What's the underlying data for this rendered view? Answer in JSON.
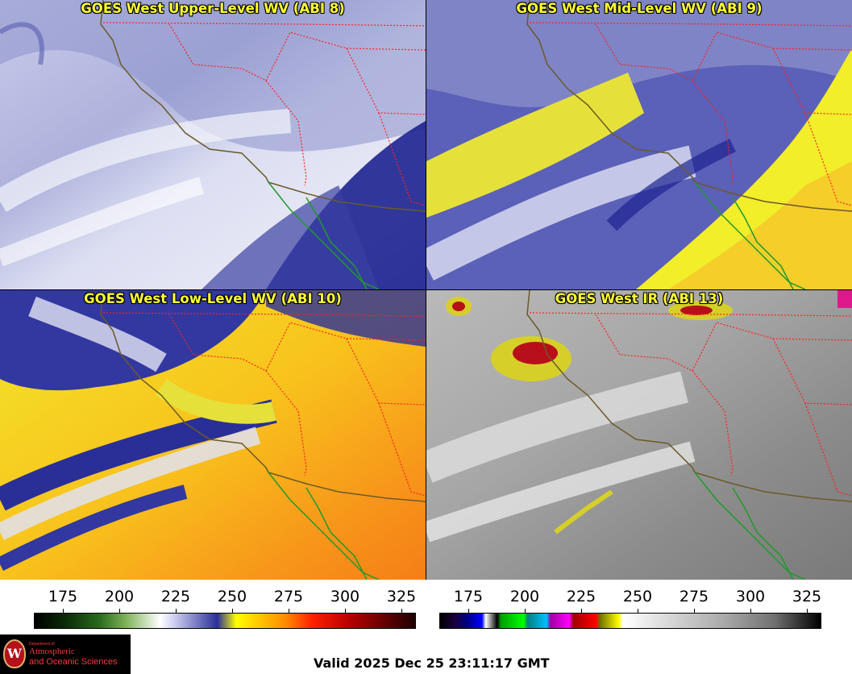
{
  "panels": {
    "upper": {
      "title": "GOES West Upper-Level WV (ABI 8)"
    },
    "mid": {
      "title": "GOES West Mid-Level WV (ABI 9)"
    },
    "low": {
      "title": "GOES West Low-Level WV (ABI 10)"
    },
    "ir": {
      "title": "GOES West IR (ABI 13)"
    }
  },
  "colorbars": {
    "wv": {
      "ticks": [
        "175",
        "200",
        "225",
        "250",
        "275",
        "300",
        "325"
      ]
    },
    "ir": {
      "ticks": [
        "175",
        "200",
        "225",
        "250",
        "275",
        "300",
        "325"
      ]
    }
  },
  "logo": {
    "line1": "Department of",
    "line2": "Atmospheric",
    "line3": "and Oceanic Sciences",
    "seal_letter": "W"
  },
  "valid_time": "Valid 2025 Dec 25 23:11:17 GMT",
  "colors": {
    "title": "#ffff33",
    "borders": "#ff2020",
    "coast_us": "#6b5a2a",
    "coast_mx": "#1f9a2a"
  }
}
